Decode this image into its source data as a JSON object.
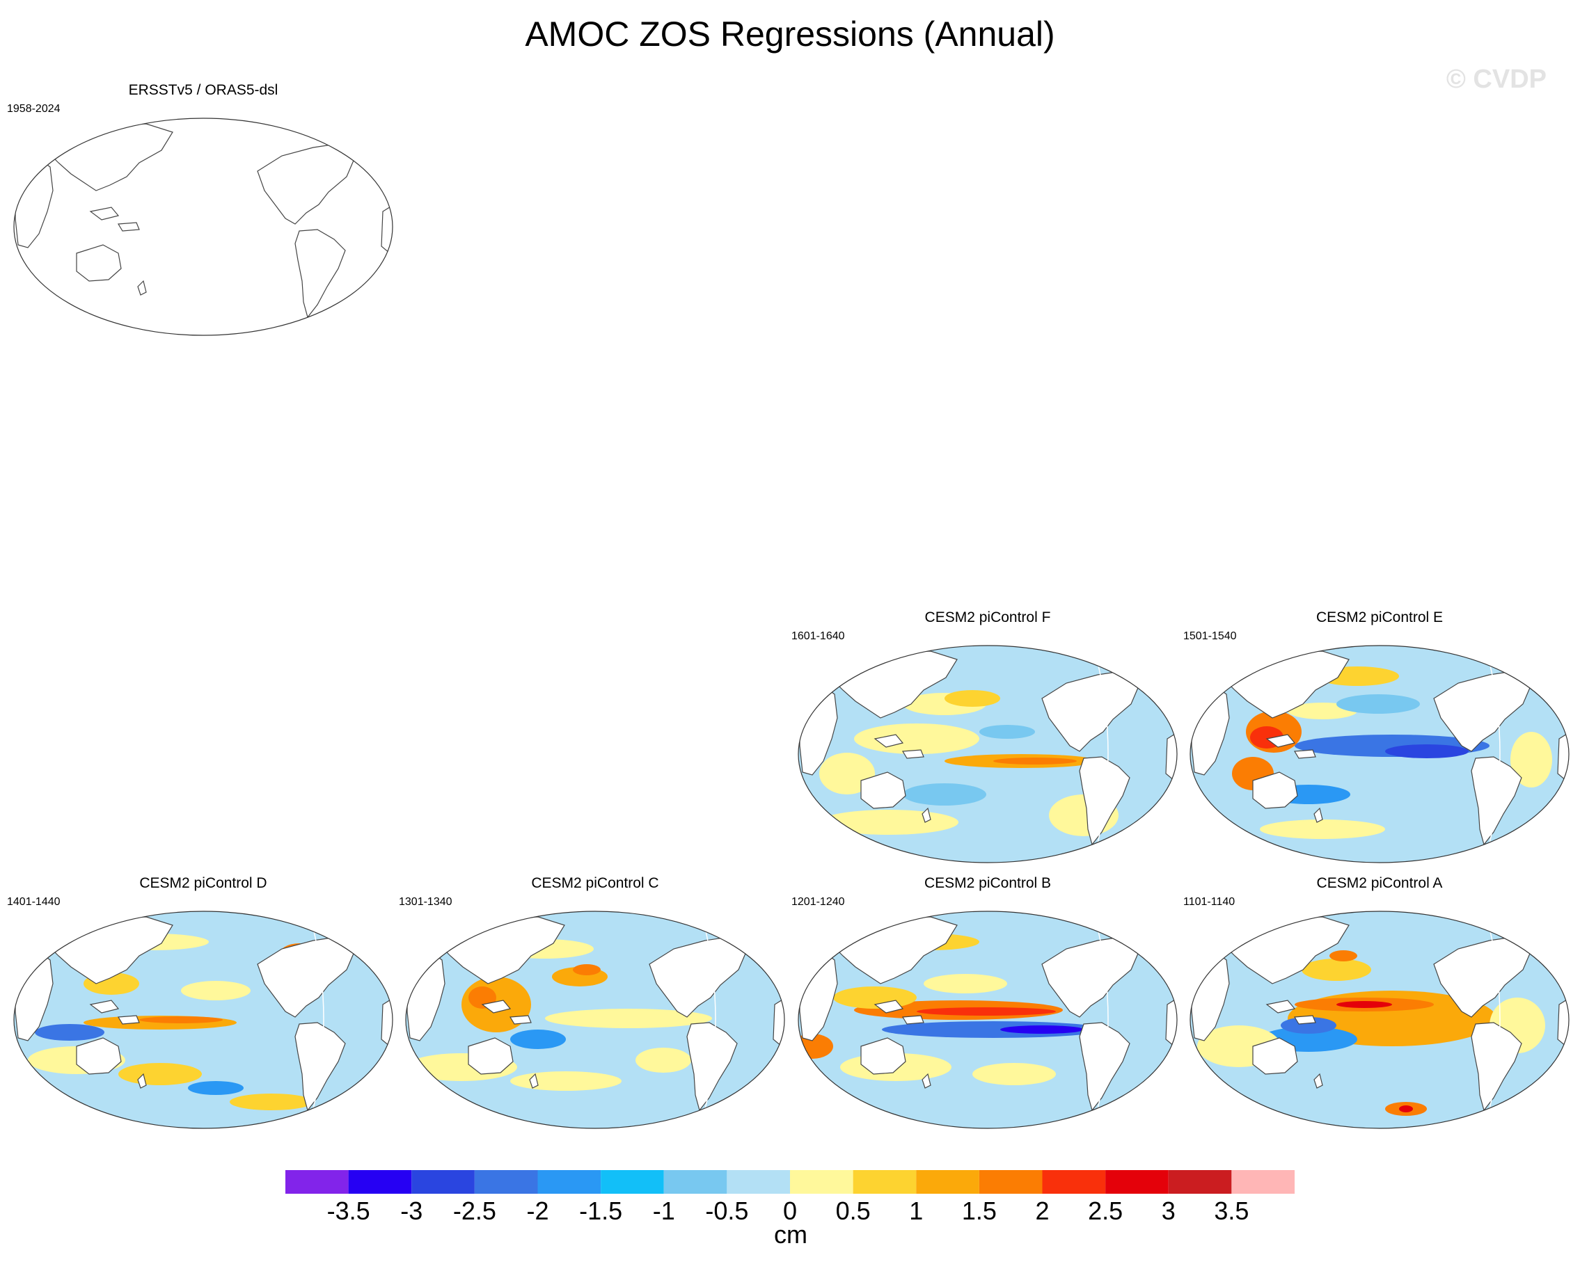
{
  "title": "AMOC ZOS Regressions (Annual)",
  "copyright": "© CVDP",
  "panels": [
    {
      "id": "obs",
      "title": "ERSSTv5 / ORAS5-dsl",
      "period": "1958-2024",
      "filled": false
    },
    {
      "id": "F",
      "title": "CESM2 piControl F",
      "period": "1601-1640",
      "filled": true
    },
    {
      "id": "E",
      "title": "CESM2 piControl E",
      "period": "1501-1540",
      "filled": true
    },
    {
      "id": "D",
      "title": "CESM2 piControl D",
      "period": "1401-1440",
      "filled": true
    },
    {
      "id": "C",
      "title": "CESM2 piControl C",
      "period": "1301-1340",
      "filled": true
    },
    {
      "id": "B",
      "title": "CESM2 piControl B",
      "period": "1201-1240",
      "filled": true
    },
    {
      "id": "A",
      "title": "CESM2 piControl A",
      "period": "1101-1140",
      "filled": true
    }
  ],
  "colorbar": {
    "units": "cm",
    "ticks": [
      "-3.5",
      "-3",
      "-2.5",
      "-2",
      "-1.5",
      "-1",
      "-0.5",
      "0",
      "0.5",
      "1",
      "1.5",
      "2",
      "2.5",
      "3",
      "3.5"
    ],
    "colors": [
      "#8224ea",
      "#2600f3",
      "#2a45e0",
      "#3a75e4",
      "#2a98f4",
      "#12bff8",
      "#78c8f0",
      "#b3e0f5",
      "#fff89b",
      "#fdd330",
      "#fba90a",
      "#fb7d03",
      "#f9300b",
      "#e4010a",
      "#cb1d20",
      "#ffb6b6"
    ]
  }
}
